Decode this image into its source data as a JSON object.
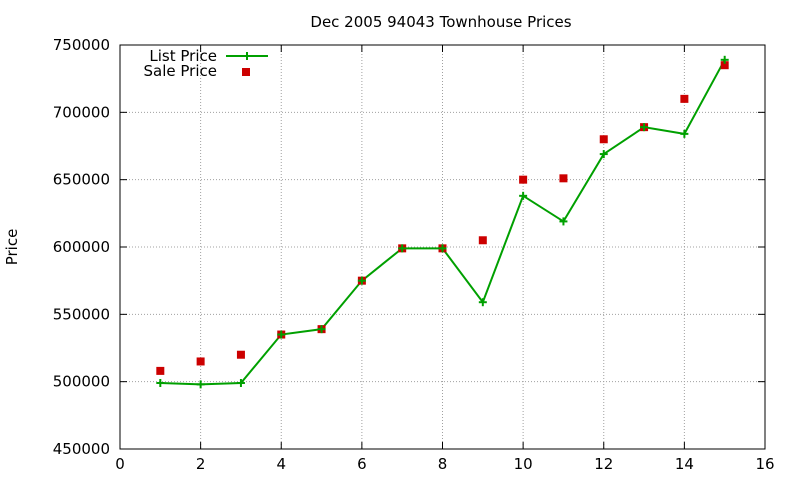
{
  "chart_data": {
    "type": "line",
    "title": "Dec 2005 94043 Townhouse Prices",
    "xlabel": "",
    "ylabel": "Price",
    "xlim": [
      0,
      16
    ],
    "ylim": [
      450000,
      750000
    ],
    "x_ticks": [
      0,
      2,
      4,
      6,
      8,
      10,
      12,
      14,
      16
    ],
    "y_ticks": [
      450000,
      500000,
      550000,
      600000,
      650000,
      700000,
      750000
    ],
    "grid": true,
    "legend_position": "top-left",
    "series": [
      {
        "name": "List Price",
        "style": "line-with-plus-markers",
        "color": "#00a000",
        "x": [
          1,
          2,
          3,
          4,
          5,
          6,
          7,
          8,
          9,
          10,
          11,
          12,
          13,
          14,
          15
        ],
        "y": [
          499000,
          498000,
          499000,
          535000,
          539000,
          575000,
          599000,
          599000,
          559000,
          638000,
          619000,
          669000,
          689000,
          684000,
          739000
        ]
      },
      {
        "name": "Sale Price",
        "style": "square-points",
        "color": "#cc0000",
        "x": [
          1,
          2,
          3,
          4,
          5,
          6,
          7,
          8,
          9,
          10,
          11,
          12,
          13,
          14,
          15
        ],
        "y": [
          508000,
          515000,
          520000,
          535000,
          539000,
          575000,
          599000,
          599000,
          605000,
          650000,
          651000,
          680000,
          689000,
          710000,
          735000
        ]
      }
    ]
  }
}
